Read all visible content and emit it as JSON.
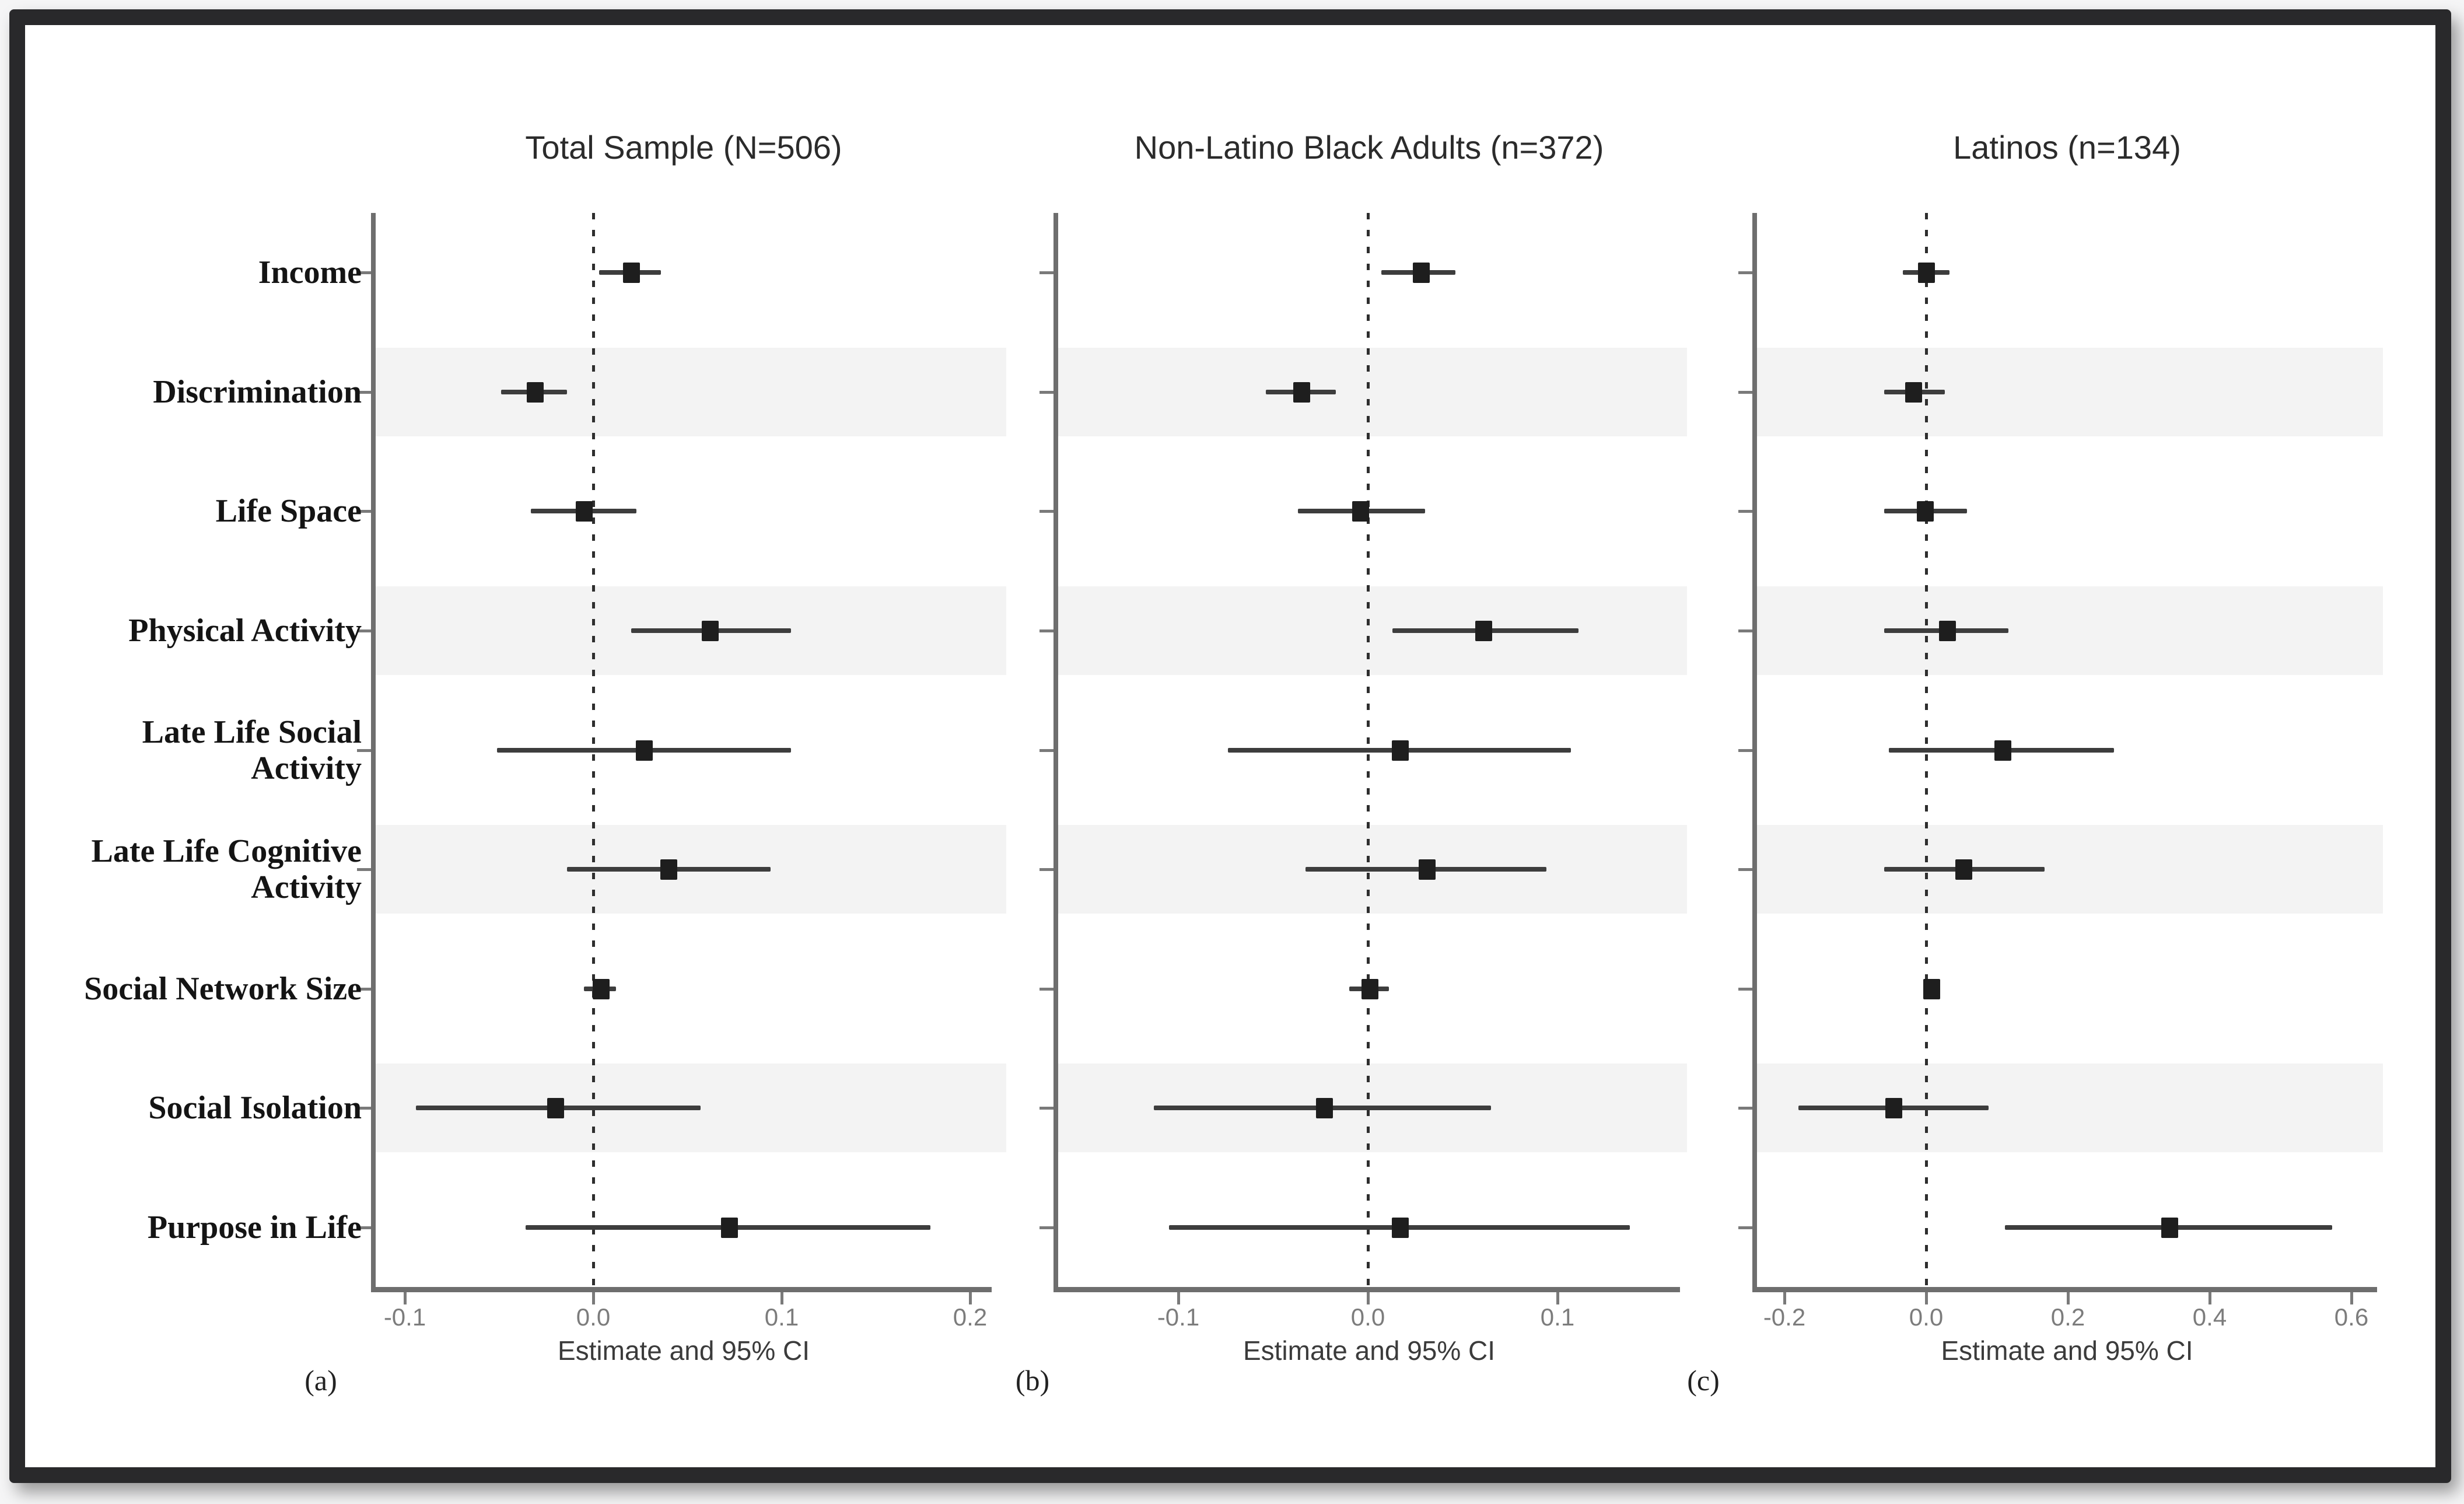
{
  "figure": {
    "kind": "three-panel forest plot",
    "frame_color": "#29292b",
    "background_color": "#ffffff",
    "band_color": "#f3f3f3",
    "marker_color": "#1e1e1e",
    "axis_color": "#6e6e6e"
  },
  "row_labels": [
    [
      "Income"
    ],
    [
      "Discrimination"
    ],
    [
      "Life Space"
    ],
    [
      "Physical Activity"
    ],
    [
      "Late Life Social",
      "Activity"
    ],
    [
      "Late Life Cognitive",
      "Activity"
    ],
    [
      "Social Network Size"
    ],
    [
      "Social Isolation"
    ],
    [
      "Purpose in Life"
    ]
  ],
  "chart_data": [
    {
      "type": "scatter",
      "subtype": "forest-plot",
      "title": "Total Sample (N=506)",
      "panel_letter": "(a)",
      "xlabel": "Estimate and 95% CI",
      "categories": [
        "Income",
        "Discrimination",
        "Life Space",
        "Physical Activity",
        "Late Life Social Activity",
        "Late Life Cognitive Activity",
        "Social Network Size",
        "Social Isolation",
        "Purpose in Life"
      ],
      "estimates": [
        0.02,
        -0.031,
        -0.005,
        0.062,
        0.027,
        0.04,
        0.004,
        -0.02,
        0.072
      ],
      "ci_low": [
        0.003,
        -0.049,
        -0.033,
        0.02,
        -0.051,
        -0.014,
        -0.005,
        -0.094,
        -0.036
      ],
      "ci_high": [
        0.036,
        -0.014,
        0.023,
        0.105,
        0.105,
        0.094,
        0.012,
        0.057,
        0.179
      ],
      "zero_reference_line": 0.0,
      "xlim": [
        -0.115,
        0.21
      ],
      "grid": false,
      "xticks": [
        {
          "value": -0.1,
          "label": "-0.1"
        },
        {
          "value": 0.0,
          "label": "0.0"
        },
        {
          "value": 0.1,
          "label": "0.1"
        },
        {
          "value": 0.2,
          "label": "0.2"
        }
      ]
    },
    {
      "type": "scatter",
      "subtype": "forest-plot",
      "title": "Non-Latino Black Adults (n=372)",
      "panel_letter": "(b)",
      "xlabel": "Estimate and 95% CI",
      "categories": [
        "Income",
        "Discrimination",
        "Life Space",
        "Physical Activity",
        "Late Life Social Activity",
        "Late Life Cognitive Activity",
        "Social Network Size",
        "Social Isolation",
        "Purpose in Life"
      ],
      "estimates": [
        0.028,
        -0.035,
        -0.004,
        0.061,
        0.017,
        0.031,
        0.001,
        -0.023,
        0.017
      ],
      "ci_low": [
        0.007,
        -0.054,
        -0.037,
        0.013,
        -0.074,
        -0.033,
        -0.01,
        -0.113,
        -0.105
      ],
      "ci_high": [
        0.046,
        -0.017,
        0.03,
        0.111,
        0.107,
        0.094,
        0.011,
        0.065,
        0.138
      ],
      "zero_reference_line": 0.0,
      "xlim": [
        -0.165,
        0.165
      ],
      "grid": false,
      "xticks": [
        {
          "value": -0.1,
          "label": "-0.1"
        },
        {
          "value": 0.0,
          "label": "0.0"
        },
        {
          "value": 0.1,
          "label": "0.1"
        }
      ]
    },
    {
      "type": "scatter",
      "subtype": "forest-plot",
      "title": "Latinos (n=134)",
      "panel_letter": "(c)",
      "xlabel": "Estimate and 95% CI",
      "categories": [
        "Income",
        "Discrimination",
        "Life Space",
        "Physical Activity",
        "Late Life Social Activity",
        "Late Life Cognitive Activity",
        "Social Network Size",
        "Social Isolation",
        "Purpose in Life"
      ],
      "estimates": [
        0.0,
        -0.018,
        -0.002,
        0.03,
        0.108,
        0.053,
        0.007,
        -0.046,
        0.343
      ],
      "ci_low": [
        -0.033,
        -0.059,
        -0.059,
        -0.059,
        -0.053,
        -0.059,
        -0.003,
        -0.18,
        0.111
      ],
      "ci_high": [
        0.033,
        0.026,
        0.058,
        0.116,
        0.265,
        0.167,
        0.018,
        0.088,
        0.573
      ],
      "zero_reference_line": 0.0,
      "xlim": [
        -0.24,
        0.64
      ],
      "grid": false,
      "xticks": [
        {
          "value": -0.2,
          "label": "-0.2"
        },
        {
          "value": 0.0,
          "label": "0.0"
        },
        {
          "value": 0.2,
          "label": "0.2"
        },
        {
          "value": 0.4,
          "label": "0.4"
        },
        {
          "value": 0.6,
          "label": "0.6"
        }
      ]
    }
  ]
}
